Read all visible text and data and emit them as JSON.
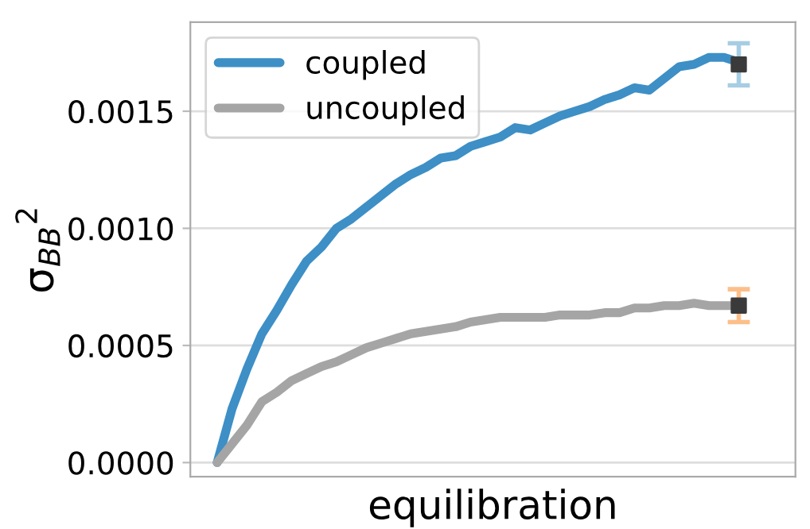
{
  "chart_data": {
    "type": "line",
    "xlabel": "equilibration",
    "ylabel": "σ$_{BB}$$^{2}$",
    "categories": [
      null,
      null,
      null,
      null,
      null,
      null,
      null,
      null,
      null,
      null,
      null,
      null,
      null,
      null,
      null,
      null,
      null,
      null,
      null,
      null,
      null,
      null,
      null,
      null,
      null,
      null,
      null,
      null,
      null,
      null,
      null,
      null,
      null,
      null,
      null,
      null
    ],
    "ylim": [
      -6e-05,
      0.00188
    ],
    "yticks": [
      {
        "value": 0,
        "label": "0.0000"
      },
      {
        "value": 0.0005,
        "label": "0.0005"
      },
      {
        "value": 0.001,
        "label": "0.0010"
      },
      {
        "value": 0.0015,
        "label": "0.0015"
      }
    ],
    "tick_labels": "y",
    "grid": "y",
    "legend": "top left",
    "series": [
      {
        "name": "coupled",
        "color": "#3d8fc6",
        "values": [
          0,
          0.00023,
          0.0004,
          0.00055,
          0.00065,
          0.00076,
          0.00086,
          0.00092,
          0.001,
          0.00104,
          0.00109,
          0.00114,
          0.00119,
          0.00123,
          0.00126,
          0.0013,
          0.00131,
          0.00135,
          0.00137,
          0.00139,
          0.00143,
          0.00142,
          0.00145,
          0.00148,
          0.0015,
          0.00152,
          0.00155,
          0.00157,
          0.0016,
          0.00159,
          0.00164,
          0.00169,
          0.0017,
          0.00173,
          0.00173,
          0.00171
        ]
      },
      {
        "name": "uncoupled",
        "color": "#a5a5a5",
        "values": [
          0,
          8e-05,
          0.00016,
          0.00026,
          0.0003,
          0.00035,
          0.00038,
          0.00041,
          0.00043,
          0.00046,
          0.00049,
          0.00051,
          0.00053,
          0.00055,
          0.00056,
          0.00057,
          0.00058,
          0.0006,
          0.00061,
          0.00062,
          0.00062,
          0.00062,
          0.00062,
          0.00063,
          0.00063,
          0.00063,
          0.00064,
          0.00064,
          0.00066,
          0.00066,
          0.00067,
          0.00067,
          0.00068,
          0.00067,
          0.00067,
          0.00067
        ]
      },
      {
        "type": "scatter",
        "marker": "square",
        "color": "#3a3a3a",
        "values": [
          null,
          null,
          null,
          null,
          null,
          null,
          null,
          null,
          null,
          null,
          null,
          null,
          null,
          null,
          null,
          null,
          null,
          null,
          null,
          null,
          null,
          null,
          null,
          null,
          null,
          null,
          null,
          null,
          null,
          null,
          null,
          null,
          null,
          null,
          null,
          0.0017
        ],
        "errors": [
          null,
          null,
          null,
          null,
          null,
          null,
          null,
          null,
          null,
          null,
          null,
          null,
          null,
          null,
          null,
          null,
          null,
          null,
          null,
          null,
          null,
          null,
          null,
          null,
          null,
          null,
          null,
          null,
          null,
          null,
          null,
          null,
          null,
          null,
          null,
          9e-05
        ]
      },
      {
        "type": "scatter",
        "marker": "square",
        "color": "#3a3a3a",
        "values": [
          null,
          null,
          null,
          null,
          null,
          null,
          null,
          null,
          null,
          null,
          null,
          null,
          null,
          null,
          null,
          null,
          null,
          null,
          null,
          null,
          null,
          null,
          null,
          null,
          null,
          null,
          null,
          null,
          null,
          null,
          null,
          null,
          null,
          null,
          null,
          0.00067
        ],
        "errors": [
          null,
          null,
          null,
          null,
          null,
          null,
          null,
          null,
          null,
          null,
          null,
          null,
          null,
          null,
          null,
          null,
          null,
          null,
          null,
          null,
          null,
          null,
          null,
          null,
          null,
          null,
          null,
          null,
          null,
          null,
          null,
          null,
          null,
          null,
          null,
          7e-05
        ]
      }
    ]
  }
}
